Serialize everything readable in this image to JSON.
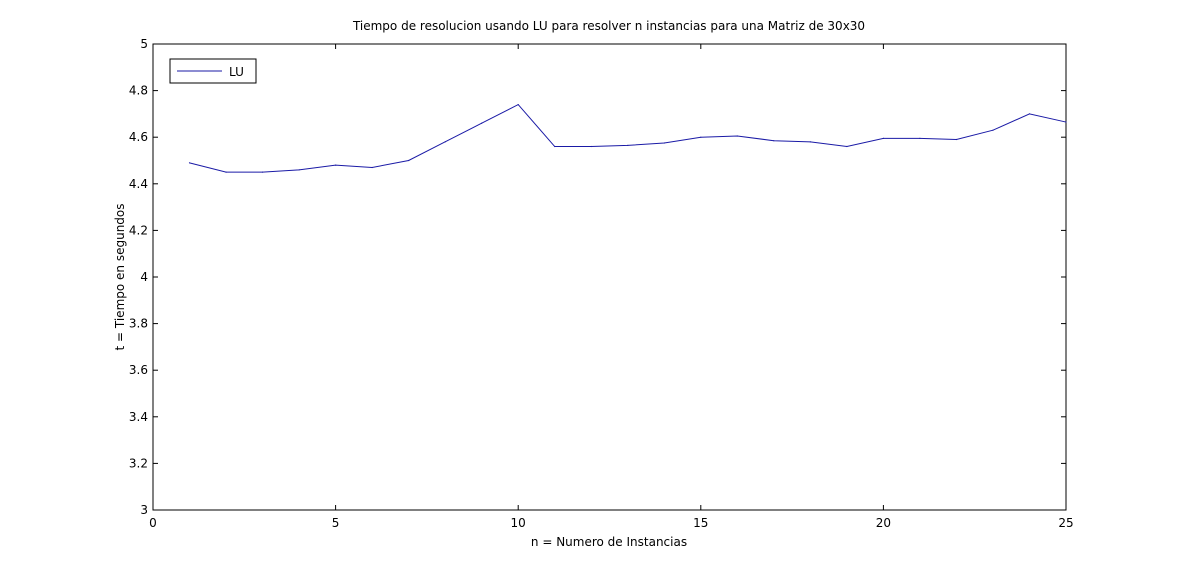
{
  "chart_data": {
    "type": "line",
    "title": "Tiempo de resolucion usando LU para resolver n instancias para una Matriz de 30x30",
    "xlabel": "n = Numero de Instancias",
    "ylabel": "t = Tiempo en segundos",
    "xlim": [
      0,
      25
    ],
    "ylim": [
      3,
      5
    ],
    "xticks": [
      0,
      5,
      10,
      15,
      20,
      25
    ],
    "yticks": [
      3,
      3.2,
      3.4,
      3.6,
      3.8,
      4,
      4.2,
      4.4,
      4.6,
      4.8,
      5
    ],
    "grid": false,
    "legend": {
      "position": "top-left",
      "entries": [
        "LU"
      ]
    },
    "series": [
      {
        "name": "LU",
        "color": "#1a1aa6",
        "x": [
          1,
          2,
          3,
          4,
          5,
          6,
          7,
          8,
          9,
          10,
          11,
          12,
          13,
          14,
          15,
          16,
          17,
          18,
          19,
          20,
          21,
          22,
          23,
          24,
          25
        ],
        "y": [
          4.49,
          4.45,
          4.45,
          4.46,
          4.48,
          4.47,
          4.5,
          4.58,
          4.66,
          4.74,
          4.56,
          4.56,
          4.565,
          4.575,
          4.6,
          4.605,
          4.585,
          4.58,
          4.56,
          4.595,
          4.595,
          4.59,
          4.63,
          4.7,
          4.665
        ]
      }
    ]
  }
}
